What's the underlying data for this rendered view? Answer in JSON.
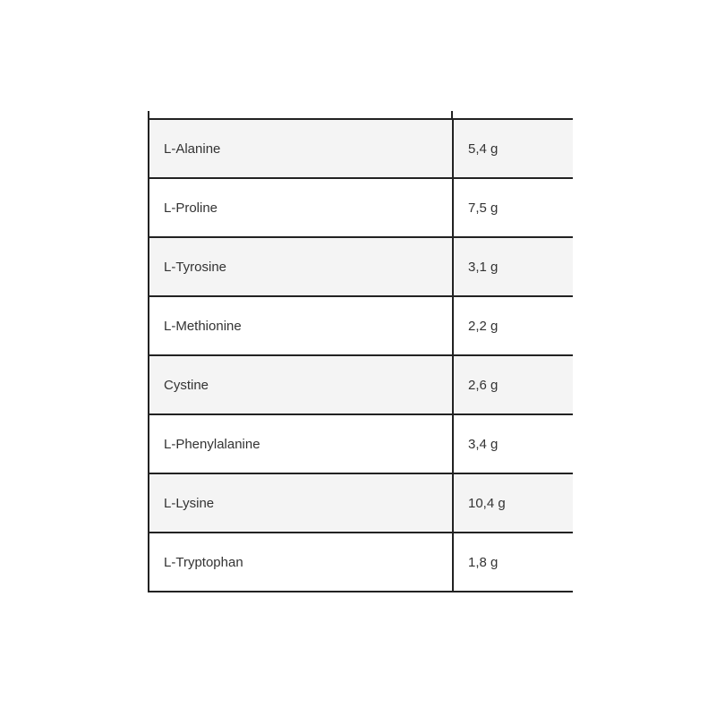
{
  "table": {
    "rows": [
      {
        "name": "L-Alanine",
        "amount": "5,4 g"
      },
      {
        "name": "L-Proline",
        "amount": "7,5 g"
      },
      {
        "name": "L-Tyrosine",
        "amount": "3,1 g"
      },
      {
        "name": "L-Methionine",
        "amount": "2,2 g"
      },
      {
        "name": "Cystine",
        "amount": "2,6 g"
      },
      {
        "name": "L-Phenylalanine",
        "amount": "3,4 g"
      },
      {
        "name": "L-Lysine",
        "amount": "10,4 g"
      },
      {
        "name": "L-Tryptophan",
        "amount": "1,8 g"
      }
    ]
  }
}
